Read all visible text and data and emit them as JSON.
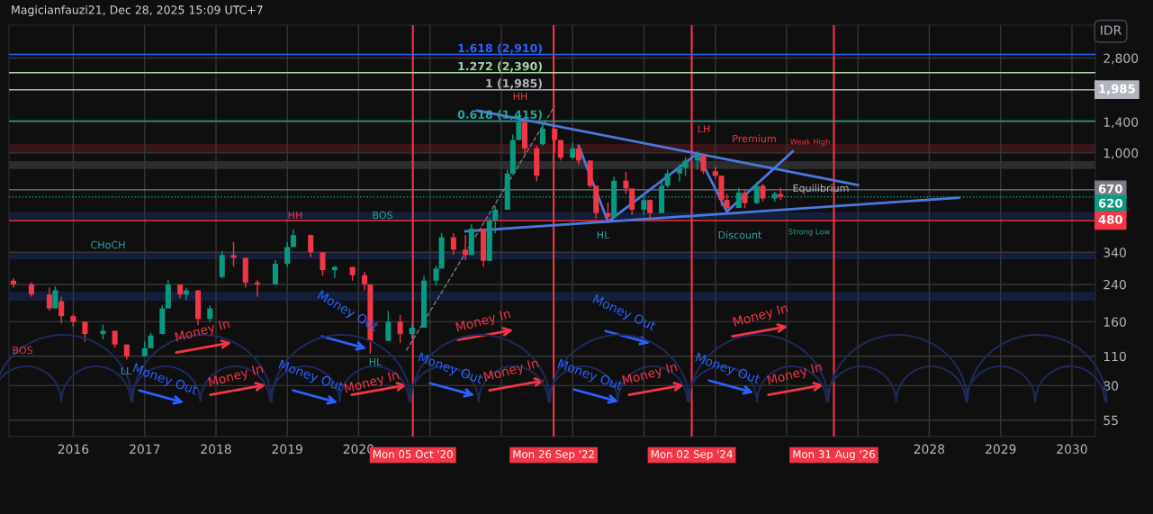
{
  "chart_data": {
    "type": "candlestick",
    "x": [
      "2015-03",
      "2015-06",
      "2015-09",
      "2015-10",
      "2015-11",
      "2016-01",
      "2016-03",
      "2016-06",
      "2016-08",
      "2016-10",
      "2017-01",
      "2017-02",
      "2017-04",
      "2017-05",
      "2017-07",
      "2017-08",
      "2017-10",
      "2017-12",
      "2018-02",
      "2018-04",
      "2018-06",
      "2018-08",
      "2018-11",
      "2019-01",
      "2019-02",
      "2019-05",
      "2019-07",
      "2019-09",
      "2019-12",
      "2020-02",
      "2020-03",
      "2020-06",
      "2020-08",
      "2020-10",
      "2020-12",
      "2021-02",
      "2021-03",
      "2021-05",
      "2021-07",
      "2021-08",
      "2021-10",
      "2021-11",
      "2021-12",
      "2022-02",
      "2022-03",
      "2022-04",
      "2022-05",
      "2022-07",
      "2022-08",
      "2022-10",
      "2022-11",
      "2023-01",
      "2023-02",
      "2023-04",
      "2023-05",
      "2023-07",
      "2023-08",
      "2023-10",
      "2023-11",
      "2024-01",
      "2024-02",
      "2024-04",
      "2024-05",
      "2024-07",
      "2024-08",
      "2024-10",
      "2024-11",
      "2025-01",
      "2025-02",
      "2025-03",
      "2025-05",
      "2025-06",
      "2025-08",
      "2025-09",
      "2025-11",
      "2025-12"
    ],
    "ohlc": [
      [
        250,
        256,
        232,
        240
      ],
      [
        240,
        245,
        210,
        215
      ],
      [
        215,
        232,
        180,
        185
      ],
      [
        185,
        235,
        185,
        225
      ],
      [
        200,
        210,
        157,
        170
      ],
      [
        170,
        173,
        152,
        160
      ],
      [
        160,
        160,
        129,
        140
      ],
      [
        140,
        155,
        132,
        145
      ],
      [
        145,
        145,
        121,
        125
      ],
      [
        125,
        125,
        106,
        110
      ],
      [
        110,
        129,
        110,
        120
      ],
      [
        120,
        142,
        120,
        138
      ],
      [
        140,
        191,
        140,
        185
      ],
      [
        185,
        251,
        185,
        240
      ],
      [
        240,
        240,
        206,
        215
      ],
      [
        215,
        232,
        202,
        225
      ],
      [
        225,
        225,
        154,
        165
      ],
      [
        165,
        191,
        160,
        185
      ],
      [
        260,
        344,
        256,
        330
      ],
      [
        330,
        380,
        291,
        320
      ],
      [
        320,
        320,
        232,
        245
      ],
      [
        245,
        251,
        210,
        240
      ],
      [
        240,
        312,
        240,
        300
      ],
      [
        300,
        380,
        291,
        360
      ],
      [
        360,
        435,
        360,
        410
      ],
      [
        410,
        413,
        322,
        340
      ],
      [
        340,
        340,
        264,
        280
      ],
      [
        280,
        294,
        256,
        290
      ],
      [
        290,
        290,
        250,
        265
      ],
      [
        265,
        276,
        225,
        240
      ],
      [
        240,
        240,
        113,
        130
      ],
      [
        130,
        180,
        130,
        160
      ],
      [
        160,
        172,
        127,
        140
      ],
      [
        140,
        157,
        134,
        150
      ],
      [
        150,
        264,
        150,
        250
      ],
      [
        250,
        294,
        237,
        285
      ],
      [
        285,
        419,
        285,
        400
      ],
      [
        400,
        419,
        332,
        350
      ],
      [
        350,
        410,
        312,
        330
      ],
      [
        330,
        462,
        330,
        440
      ],
      [
        440,
        440,
        291,
        310
      ],
      [
        310,
        497,
        310,
        480
      ],
      [
        480,
        563,
        419,
        540
      ],
      [
        540,
        834,
        540,
        800
      ],
      [
        800,
        1220,
        800,
        1150
      ],
      [
        1150,
        1506,
        1150,
        1400
      ],
      [
        1400,
        1400,
        985,
        1050
      ],
      [
        1050,
        1080,
        735,
        780
      ],
      [
        1100,
        1366,
        1080,
        1300
      ],
      [
        1300,
        1300,
        1016,
        1150
      ],
      [
        1150,
        1150,
        921,
        950
      ],
      [
        950,
        1121,
        940,
        1050
      ],
      [
        1050,
        1080,
        885,
        920
      ],
      [
        920,
        920,
        685,
        700
      ],
      [
        700,
        700,
        490,
        520
      ],
      [
        520,
        583,
        480,
        500
      ],
      [
        500,
        772,
        500,
        740
      ],
      [
        740,
        813,
        641,
        680
      ],
      [
        680,
        680,
        510,
        540
      ],
      [
        540,
        641,
        510,
        600
      ],
      [
        600,
        602,
        490,
        520
      ],
      [
        520,
        730,
        520,
        700
      ],
      [
        700,
        834,
        685,
        800
      ],
      [
        800,
        885,
        735,
        850
      ],
      [
        850,
        955,
        780,
        920
      ],
      [
        920,
        1016,
        834,
        980
      ],
      [
        980,
        980,
        795,
        820
      ],
      [
        820,
        860,
        756,
        780
      ],
      [
        780,
        780,
        563,
        600
      ],
      [
        600,
        641,
        530,
        550
      ],
      [
        550,
        685,
        550,
        650
      ],
      [
        650,
        670,
        550,
        580
      ],
      [
        580,
        730,
        573,
        700
      ],
      [
        700,
        715,
        590,
        610
      ],
      [
        610,
        655,
        590,
        640
      ],
      [
        640,
        685,
        600,
        620
      ]
    ],
    "series": [
      {
        "type": "line",
        "color": "#4a78e0",
        "x": [
          "2021-09",
          "2027-01"
        ],
        "values": [
          1582,
          706
        ]
      },
      {
        "type": "line",
        "color": "#4a78e0",
        "x": [
          "2021-07",
          "2028-06"
        ],
        "values": [
          427,
          615
        ]
      },
      {
        "type": "line",
        "color": "#4a78e0",
        "x": [
          "2023-02",
          "2023-07",
          "2024-10",
          "2025-03",
          "2026-02"
        ],
        "values": [
          1080,
          474,
          994,
          529,
          1016
        ]
      },
      {
        "type": "line",
        "color": "#787b86",
        "line_style": "dashed",
        "x": [
          "2020-09",
          "2022-10"
        ],
        "values": [
          117,
          1661
        ]
      }
    ],
    "xlim": [
      "2015-02-06",
      "2030-05-01"
    ],
    "xticks": [
      {
        "value": "2016",
        "label": "2016"
      },
      {
        "value": "2017",
        "label": "2017"
      },
      {
        "value": "2018",
        "label": "2018"
      },
      {
        "value": "2019",
        "label": "2019"
      },
      {
        "value": "2020",
        "label": "2020"
      },
      {
        "value": "2021",
        "label": null
      },
      {
        "value": "2022",
        "label": null
      },
      {
        "value": "2023",
        "label": null
      },
      {
        "value": "2024",
        "label": null
      },
      {
        "value": "2025",
        "label": null
      },
      {
        "value": "2026",
        "label": null
      },
      {
        "value": "2027",
        "label": null
      },
      {
        "value": "2028",
        "label": "2028"
      },
      {
        "value": "2029",
        "label": "2029"
      },
      {
        "value": "2030",
        "label": "2030"
      }
    ],
    "log": "y",
    "ylim": [
      46,
      4000
    ],
    "yticks": [
      55,
      80,
      110,
      160,
      240,
      340,
      {
        "value": 1000,
        "label": "1,000"
      },
      {
        "value": 1400,
        "label": "1,400"
      },
      {
        "value": 2800,
        "label": "2,800"
      }
    ],
    "ylabel": "IDR",
    "grid": true,
    "ref_lines": [
      {
        "axis": "x",
        "value": "2020-10-05",
        "label": "Mon 05 Oct '20",
        "color": "#f23645"
      },
      {
        "axis": "x",
        "value": "2022-09-26",
        "label": "Mon 26 Sep '22",
        "color": "#f23645"
      },
      {
        "axis": "x",
        "value": "2024-09-02",
        "label": "Mon 02 Sep '24",
        "color": "#f23645"
      },
      {
        "axis": "x",
        "value": "2026-08-31",
        "label": "Mon 31 Aug '26",
        "color": "#f23645"
      },
      {
        "axis": "y",
        "value": 2910,
        "color": "#2962ff"
      },
      {
        "axis": "y",
        "value": 2390,
        "color": "#a5d6a7"
      },
      {
        "axis": "y",
        "value": 1985,
        "label": "1,985",
        "color": "#b2b5be"
      },
      {
        "axis": "y",
        "value": 1415,
        "color": "#26a69a"
      },
      {
        "axis": "y",
        "value": 670,
        "label": "670",
        "color": "#787b86"
      },
      {
        "axis": "y",
        "value": 620,
        "label": "620",
        "color": "#089981",
        "line_style": "dotted"
      },
      {
        "axis": "y",
        "value": 480,
        "label": "480",
        "color": "#f23645"
      }
    ],
    "bands": [
      {
        "axis": "y",
        "from": 1000,
        "to": 1100,
        "color": "#f23645"
      },
      {
        "axis": "y",
        "from": 840,
        "to": 915,
        "color": "#b2b5be"
      },
      {
        "axis": "y",
        "from": 490,
        "to": 525,
        "color": "#2962ff"
      },
      {
        "axis": "y",
        "from": 315,
        "to": 340,
        "color": "#2962ff"
      },
      {
        "axis": "y",
        "from": 201,
        "to": 222,
        "color": "#2962ff"
      }
    ],
    "annotations": [
      "Magicianfauzi21, Dec 28, 2025 15:09 UTC+7",
      {
        "text": "1.618 (2,910)",
        "x": "2022-08",
        "y": 2910
      },
      {
        "text": "1.272 (2,390)",
        "x": "2022-08",
        "y": 2390
      },
      {
        "text": "1 (1,985)",
        "x": "2022-08",
        "y": 1985
      },
      {
        "text": "0.618 (1,415)",
        "x": "2022-08",
        "y": 1415
      },
      "Money In",
      "Money Out",
      "Money In",
      "Money Out",
      "Money In",
      "Money Out",
      "Money In",
      "Money Out",
      "Money In",
      "Money Out",
      "Money Out",
      "Money In",
      "Money Out",
      "Money In",
      "Money In",
      "HH",
      "HH",
      "LL",
      "HL",
      "HL",
      "LH",
      "CHoCH",
      "BOS",
      "BOS",
      "Premium",
      "Discount",
      "Equilibrium",
      "Weak High",
      "Strong Low"
    ]
  }
}
